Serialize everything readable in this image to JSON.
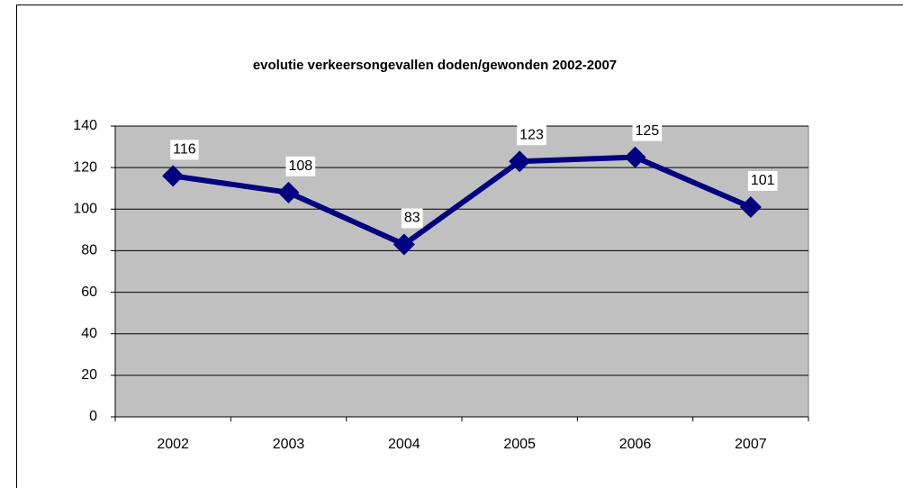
{
  "chart_data": {
    "type": "line",
    "title": "evolutie verkeersongevallen doden/gewonden 2002-2007",
    "categories": [
      "2002",
      "2003",
      "2004",
      "2005",
      "2006",
      "2007"
    ],
    "values": [
      116,
      108,
      83,
      123,
      125,
      101
    ],
    "color": "#000080",
    "ylim": [
      0,
      140
    ],
    "yticks": [
      0,
      20,
      40,
      60,
      80,
      100,
      120,
      140
    ],
    "grid": true,
    "data_labels": true
  }
}
